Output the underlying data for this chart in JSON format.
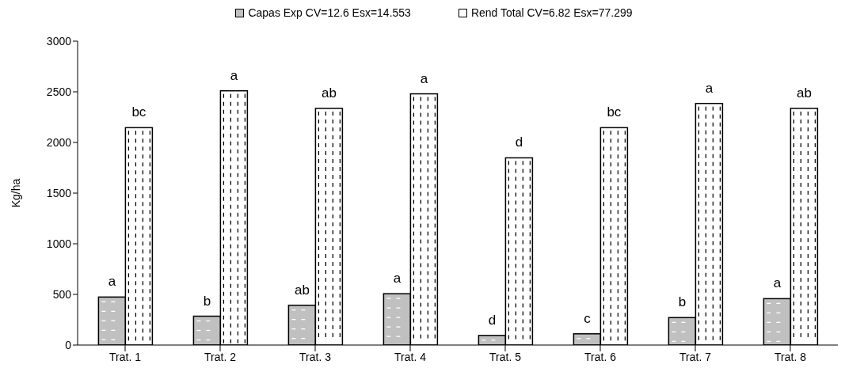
{
  "chart_data": {
    "type": "bar",
    "ylabel": "Kg/ha",
    "categories": [
      "Trat. 1",
      "Trat. 2",
      "Trat. 3",
      "Trat. 4",
      "Trat. 5",
      "Trat. 6",
      "Trat. 7",
      "Trat. 8"
    ],
    "series": [
      {
        "name": "Capas Exp CV=12.6 Esx=14.553",
        "color": "#c0c0c0",
        "values": [
          474,
          285,
          393,
          507,
          95,
          111,
          271,
          458
        ],
        "value_labels": [
          "a",
          "b",
          "ab",
          "a",
          "d",
          "c",
          "b",
          "a"
        ]
      },
      {
        "name": "Rend Total CV=6.82 Esx=77.299",
        "color": "#ffffff",
        "values": [
          2146,
          2510,
          2336,
          2480,
          1848,
          2146,
          2385,
          2336
        ],
        "value_labels": [
          "bc",
          "a",
          "ab",
          "a",
          "d",
          "bc",
          "a",
          "ab"
        ]
      }
    ],
    "ylim": [
      0,
      3000
    ],
    "yticks": [
      0,
      500,
      1000,
      1500,
      2000,
      2500,
      3000
    ],
    "grid": false,
    "legend": "top"
  }
}
